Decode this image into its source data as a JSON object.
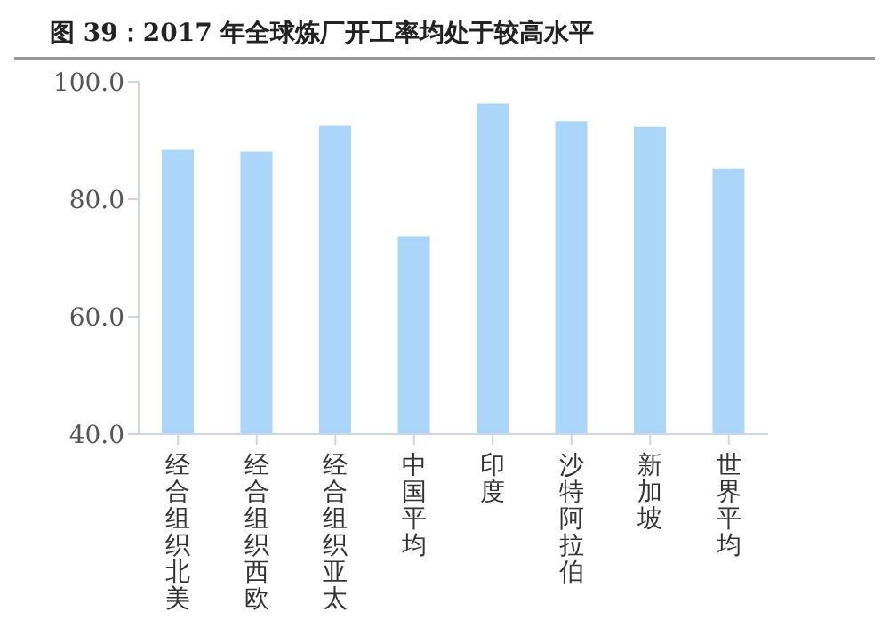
{
  "chart_data": {
    "type": "bar",
    "title": "图 39：2017 年全球炼厂开工率均处于较高水平",
    "categories": [
      "经合组织北美",
      "经合组织西欧",
      "经合组织亚太",
      "中国平均",
      "印度",
      "沙特阿拉伯",
      "新加坡",
      "世界平均"
    ],
    "values": [
      88.4,
      88.1,
      92.5,
      73.7,
      96.3,
      93.3,
      92.3,
      85.2
    ],
    "color": "#acd5fa",
    "ylim": [
      40,
      100
    ],
    "yticks": [
      {
        "value": 40,
        "label": "40.0"
      },
      {
        "value": 60,
        "label": "60.0"
      },
      {
        "value": 80,
        "label": "80.0"
      },
      {
        "value": 100,
        "label": "100.0"
      }
    ],
    "grid": false
  }
}
